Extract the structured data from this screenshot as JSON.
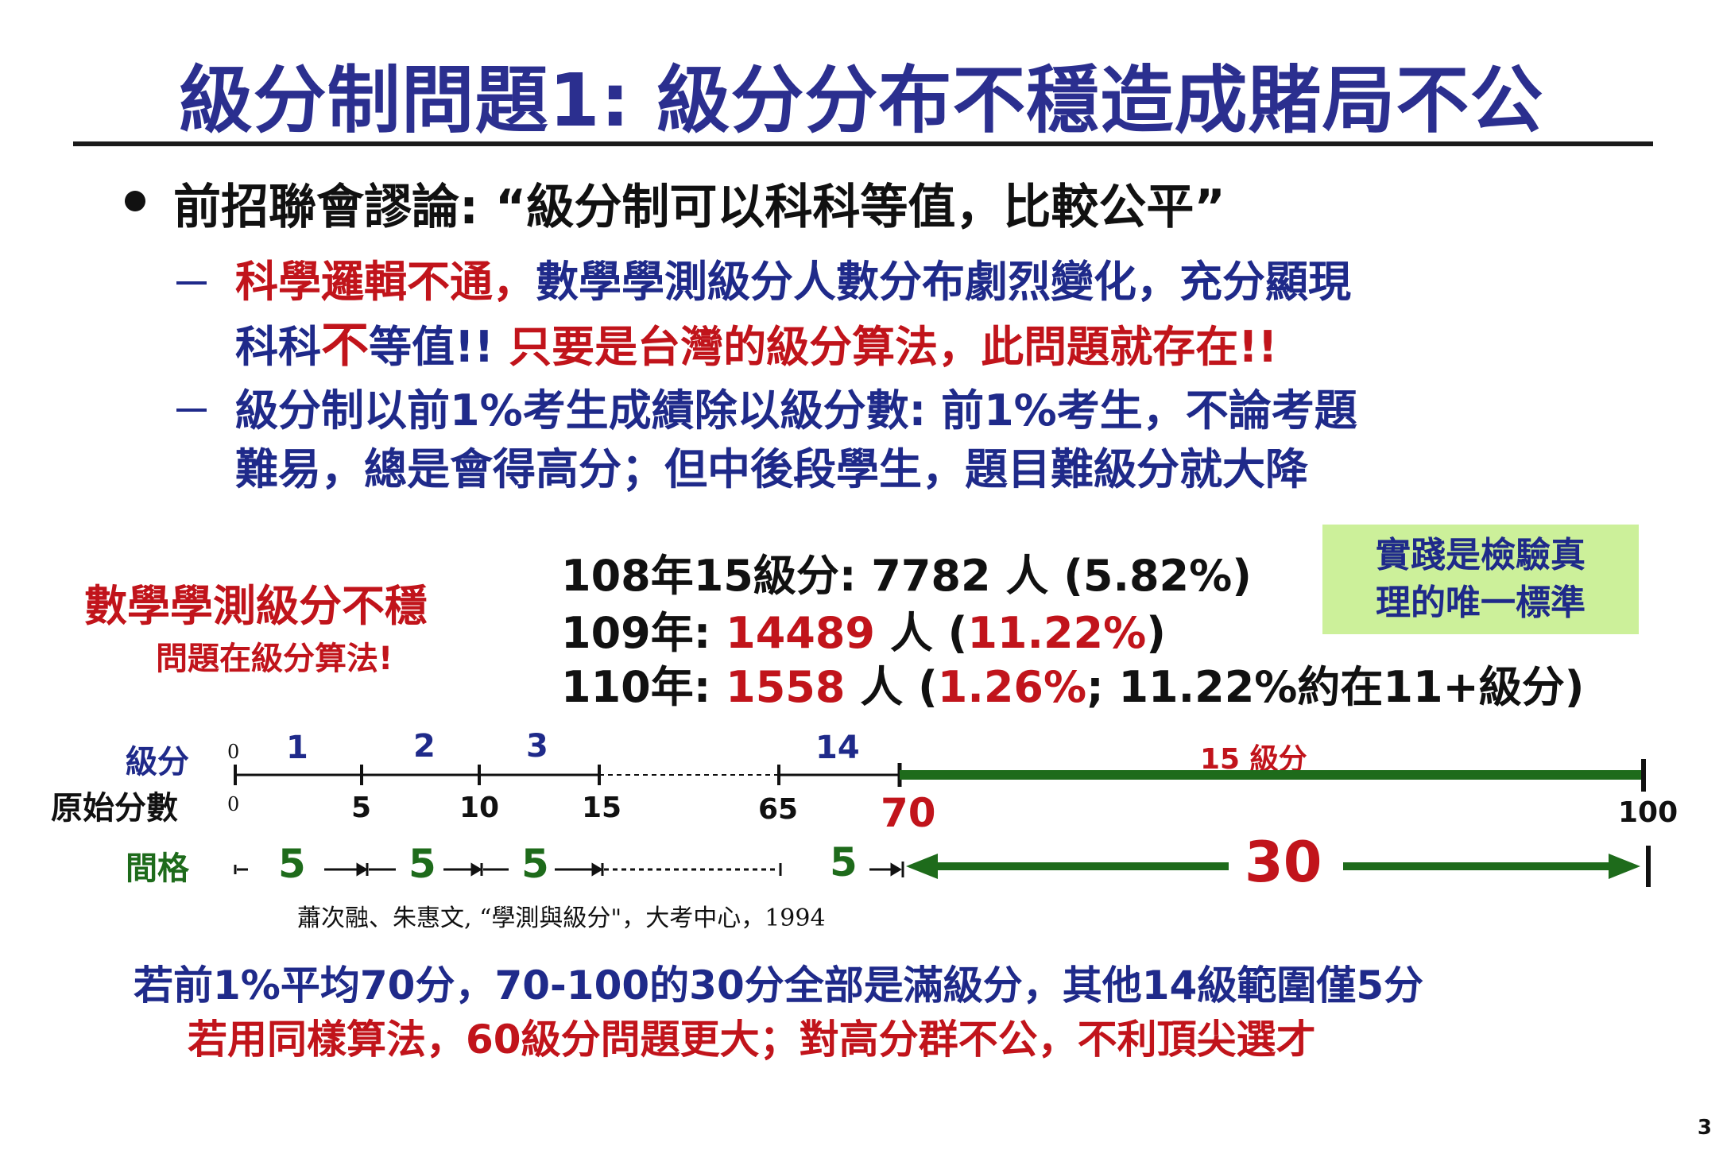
{
  "title": "級分制問題1: 級分分布不穩造成賭局不公",
  "bullet": {
    "text": "前招聯會謬論: “級分制可以科科等值，比較公平”"
  },
  "subpoints": [
    {
      "line1_red": "科學邏輯不通，",
      "line1_blue": "數學學測級分人數分布劇烈變化，充分顯現",
      "line2_blue_a": "科科",
      "line2_red_big": "不",
      "line2_blue_b": "等值!!",
      "line2_red": "只要是台灣的級分算法，此問題就存在!!"
    },
    {
      "line1": "級分制以前1%考生成績除以級分數: 前1%考生，不論考題",
      "line2": "難易，總是會得高分；但中後段學生，題目難級分就大降"
    }
  ],
  "instability": {
    "heading": "數學學測級分不穩",
    "subheading": "問題在級分算法!"
  },
  "stats": [
    {
      "year": "108年15級分:",
      "count": "7782",
      "unit": "人",
      "pct": "(5.82%)"
    },
    {
      "year": "109年:",
      "count": "14489",
      "unit": "人",
      "pct_open": "(",
      "pct": "11.22%",
      "pct_close": ")"
    },
    {
      "year": "110年:",
      "count": "1558",
      "unit": "人",
      "pct_open": "(",
      "pct": "1.26%",
      "rest": "; 11.22%約在11+級分)"
    }
  ],
  "truth_box": {
    "line1": "實踐是檢驗真",
    "line2": "理的唯一標準"
  },
  "diagram": {
    "row_label_grade": "級分",
    "row_label_raw": "原始分數",
    "row_label_interval": "間格",
    "zero_top": "0",
    "zero_bottom": "0",
    "grades": [
      "1",
      "2",
      "3",
      "14"
    ],
    "grade15": "15 級分",
    "raw_ticks": [
      "5",
      "10",
      "15",
      "65",
      "70",
      "100"
    ],
    "intervals": [
      "5",
      "5",
      "5",
      "5"
    ],
    "big_interval": "30"
  },
  "citation": "蕭次融、朱惠文, “學測與級分\"，大考中心，1994",
  "conclusion": {
    "line1": "若前1%平均70分，70-100的30分全部是滿級分，其他14級範圍僅5分",
    "line2": "若用同樣算法，60級分問題更大；對高分群不公，不利頂尖選才"
  },
  "page_number": "3",
  "colors": {
    "navy": "#1f2a8a",
    "red": "#c1141b",
    "green": "#1e6b1b",
    "box": "#ccf09a"
  }
}
